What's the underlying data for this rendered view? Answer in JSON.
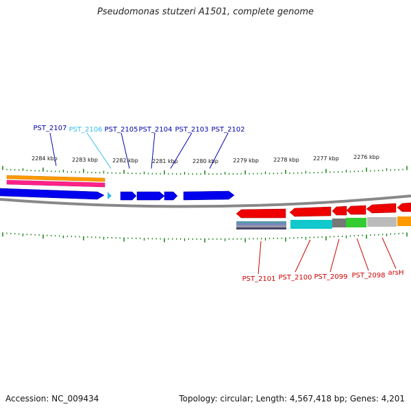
{
  "title": "Pseudomonas stutzeri A1501, complete genome",
  "footer": {
    "accession": "Accession: NC_009434",
    "topology": "Topology: circular; Length: 4,567,418 bp; Genes: 4,201"
  },
  "colors": {
    "dark_blue": "#0000ee",
    "light_blue": "#33bbee",
    "red": "#ee0000",
    "dark_red": "#cc0000",
    "backbone": "#888888",
    "tick": "#007700",
    "orange": "#ff9900",
    "magenta": "#ff2288",
    "cyan": "#11c8cc",
    "green": "#33cc33",
    "grey": "#777777",
    "light_grey": "#bbbbbb"
  },
  "scale_ticks": [
    {
      "label": "2284 kbp"
    },
    {
      "label": "2283 kbp"
    },
    {
      "label": "2282 kbp"
    },
    {
      "label": "2281 kbp"
    },
    {
      "label": "2280 kbp"
    },
    {
      "label": "2279 kbp"
    },
    {
      "label": "2278 kbp"
    },
    {
      "label": "2277 kbp"
    },
    {
      "label": "2276 kbp"
    }
  ],
  "genes_top": [
    {
      "label": "PST_2107",
      "color": "#0000aa"
    },
    {
      "label": "PST_2106",
      "color": "#33bbee"
    },
    {
      "label": "PST_2105",
      "color": "#0000aa"
    },
    {
      "label": "PST_2104",
      "color": "#0000aa"
    },
    {
      "label": "PST_2103",
      "color": "#0000aa"
    },
    {
      "label": "PST_2102",
      "color": "#0000aa"
    }
  ],
  "genes_bottom": [
    {
      "label": "PST_2101",
      "color": "#cc0000"
    },
    {
      "label": "PST_2100",
      "color": "#cc0000"
    },
    {
      "label": "PST_2099",
      "color": "#cc0000"
    },
    {
      "label": "PST_2098",
      "color": "#cc0000"
    },
    {
      "label": "arsH",
      "color": "#cc0000"
    }
  ]
}
